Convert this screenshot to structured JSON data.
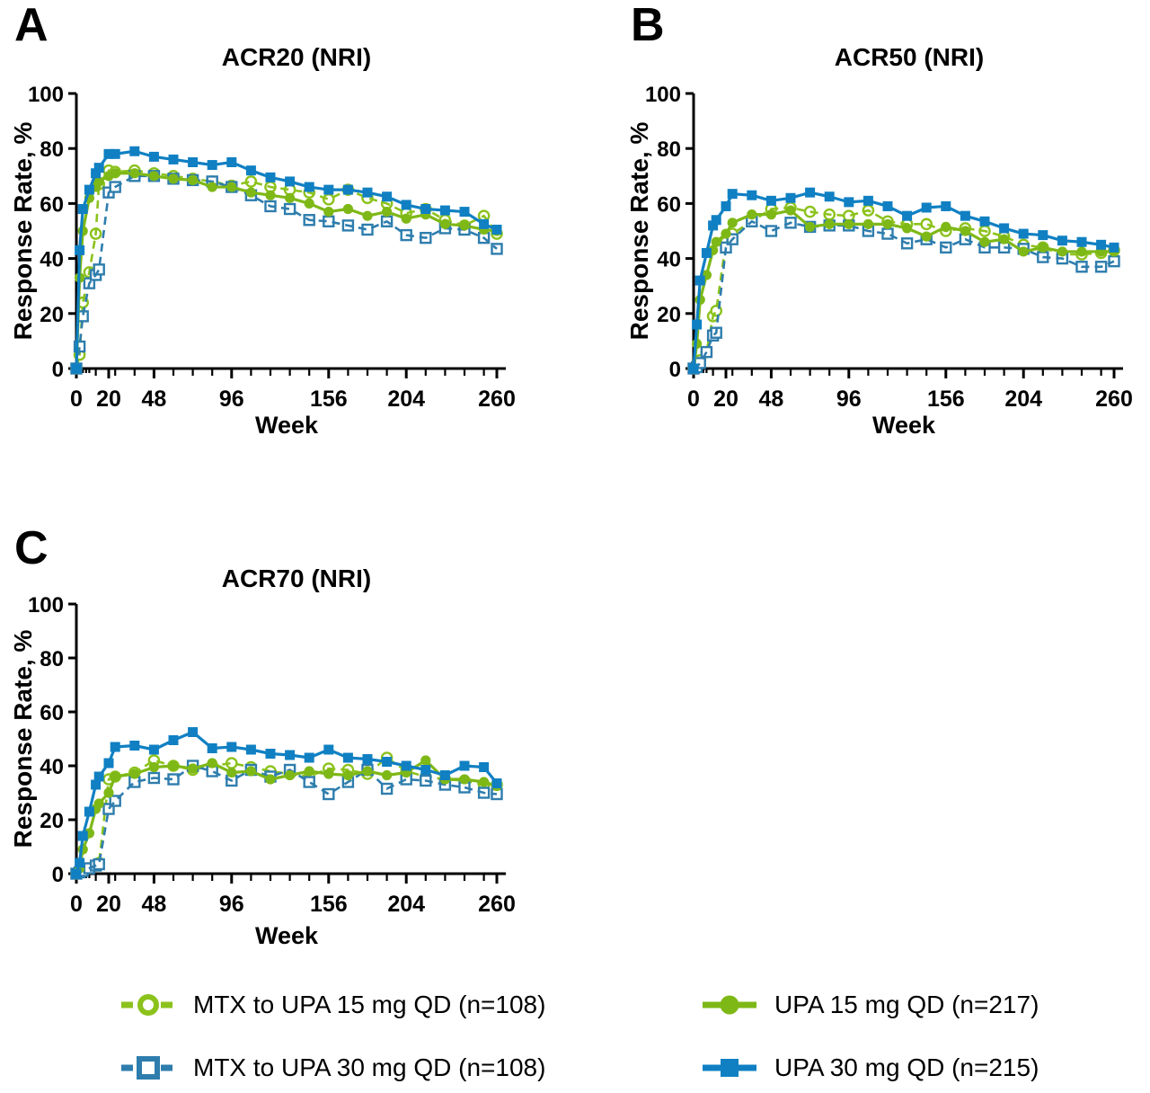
{
  "figure": {
    "background": "#ffffff"
  },
  "panels": [
    {
      "letter": "A",
      "title": "ACR20 (NRI)",
      "x_label": "Week",
      "y_label": "Response Rate, %",
      "key": "acr20"
    },
    {
      "letter": "B",
      "title": "ACR50 (NRI)",
      "x_label": "Week",
      "y_label": "Response Rate, %",
      "key": "acr50"
    },
    {
      "letter": "C",
      "title": "ACR70 (NRI)",
      "x_label": "Week",
      "y_label": "Response Rate, %",
      "key": "acr70"
    }
  ],
  "legend": {
    "items": [
      {
        "label": "MTX to UPA 15 mg QD (n=108)",
        "series": 0
      },
      {
        "label": "UPA 15 mg QD (n=217)",
        "series": 1
      },
      {
        "label": "MTX to UPA 30 mg QD (n=108)",
        "series": 2
      },
      {
        "label": "UPA 30 mg QD (n=215)",
        "series": 3
      }
    ]
  },
  "chart_data": {
    "type": "line",
    "xlabel": "Week",
    "ylabel": "Response Rate, %",
    "xlim": [
      0,
      260
    ],
    "ylim": [
      0,
      100
    ],
    "x_ticks_major": [
      0,
      20,
      48,
      96,
      156,
      204,
      260
    ],
    "x_ticks_minor": [
      2,
      4,
      6,
      8,
      12,
      24,
      36,
      60,
      72,
      84,
      108,
      120,
      132,
      144,
      168,
      180,
      192,
      216,
      228,
      240,
      252
    ],
    "y_ticks": [
      0,
      20,
      40,
      60,
      80,
      100
    ],
    "grid": false,
    "legend_position": "bottom",
    "x": [
      0,
      2,
      4,
      8,
      12,
      14,
      20,
      24,
      36,
      48,
      60,
      72,
      84,
      96,
      108,
      120,
      132,
      144,
      156,
      168,
      180,
      192,
      204,
      216,
      228,
      240,
      252,
      260
    ],
    "draw_order": [
      0,
      2,
      1,
      3
    ],
    "series": [
      {
        "name": "MTX to UPA 15 mg QD (n=108)",
        "color": "#8cc21c",
        "marker": "circle",
        "fill": "open",
        "line": "dashed",
        "values": {
          "acr20": [
            0,
            5,
            24,
            35,
            49,
            67,
            72,
            71.5,
            72,
            71,
            70,
            69,
            68,
            66.5,
            68,
            66,
            65,
            64,
            61.5,
            65,
            62,
            60,
            56.5,
            58,
            54,
            52,
            55.5,
            49
          ],
          "acr50": [
            0,
            1,
            3,
            6,
            19,
            21,
            46,
            49,
            53.5,
            58,
            58.5,
            57,
            56,
            55.5,
            57.5,
            53.5,
            52.5,
            52.5,
            50,
            51,
            50,
            48,
            45,
            44,
            41.5,
            41.5,
            42,
            43
          ],
          "acr70": [
            0,
            0.5,
            1,
            2,
            3,
            4,
            35,
            36,
            37.5,
            42,
            40,
            38.5,
            40,
            41,
            39.5,
            38,
            37,
            36,
            39,
            38.5,
            37,
            43,
            38,
            36,
            35,
            34.5,
            33,
            33
          ]
        }
      },
      {
        "name": "UPA 15 mg QD (n=217)",
        "color": "#7eb817",
        "marker": "circle",
        "fill": "solid",
        "line": "solid",
        "values": {
          "acr20": [
            0,
            33,
            50,
            62,
            66,
            68,
            70,
            71,
            71,
            70,
            69,
            68.5,
            66,
            66,
            64,
            63,
            62,
            60,
            57,
            58,
            55.5,
            57,
            54.5,
            56,
            52.5,
            52,
            50.5,
            50
          ],
          "acr50": [
            0,
            9,
            25,
            34,
            43,
            46,
            49,
            53,
            56,
            56,
            57.5,
            51.5,
            52.5,
            52.5,
            52.5,
            52.5,
            51,
            48,
            51.5,
            50,
            46,
            47,
            42.5,
            44,
            42.5,
            42.5,
            42.5,
            42.5
          ],
          "acr70": [
            0,
            2,
            9,
            15,
            24,
            26,
            30,
            36,
            37,
            39.5,
            40,
            39,
            41,
            37.5,
            38,
            35,
            36.5,
            38,
            37,
            36.5,
            38,
            36.5,
            37.5,
            42,
            35,
            35,
            34,
            32.5
          ]
        }
      },
      {
        "name": "MTX to UPA 30 mg QD (n=108)",
        "color": "#2e7dad",
        "marker": "square",
        "fill": "open",
        "line": "dashed",
        "values": {
          "acr20": [
            0,
            8,
            19,
            31,
            34,
            36,
            64,
            66,
            70,
            70,
            69,
            68.5,
            68,
            66,
            63,
            59,
            58,
            54,
            53.5,
            52,
            50.5,
            53.5,
            48.5,
            47.5,
            51,
            50.5,
            47.5,
            43.5
          ],
          "acr50": [
            0,
            0.5,
            2,
            6,
            12,
            13,
            44,
            47,
            53.5,
            50,
            53,
            51.5,
            52,
            52,
            50,
            49,
            45.5,
            47,
            44,
            47,
            44,
            44,
            43.5,
            40.5,
            40,
            37,
            37,
            39
          ],
          "acr70": [
            0,
            0.5,
            1,
            2,
            3,
            3.5,
            24,
            27,
            34,
            35.5,
            35,
            40,
            38,
            34.5,
            38.5,
            36,
            38.5,
            34,
            29.5,
            34,
            38.5,
            31.5,
            35,
            34.5,
            33,
            32,
            30,
            29.5
          ]
        }
      },
      {
        "name": "UPA 30 mg QD (n=215)",
        "color": "#1080c3",
        "marker": "square",
        "fill": "solid",
        "line": "solid",
        "values": {
          "acr20": [
            0,
            43,
            58,
            65,
            71,
            73,
            78,
            78,
            79,
            77,
            76,
            75,
            74,
            75,
            72,
            69.5,
            68,
            66,
            65,
            65,
            64,
            62.5,
            59.5,
            58,
            57.5,
            57,
            52.5,
            50.5
          ],
          "acr50": [
            0,
            16,
            32,
            42,
            52,
            54,
            59,
            63.5,
            63,
            61,
            62,
            64,
            62.5,
            60.5,
            61,
            59,
            55.5,
            58.5,
            59,
            55.5,
            53.5,
            51,
            49,
            48.5,
            46.5,
            46,
            45,
            44
          ],
          "acr70": [
            0,
            4,
            14,
            23,
            33,
            36,
            41,
            47,
            47.5,
            46,
            49.5,
            52.5,
            46.5,
            47,
            46,
            44.5,
            44,
            43,
            46,
            43,
            42.5,
            41.5,
            40,
            38.5,
            36.5,
            40,
            39.5,
            33.5
          ]
        }
      }
    ]
  }
}
